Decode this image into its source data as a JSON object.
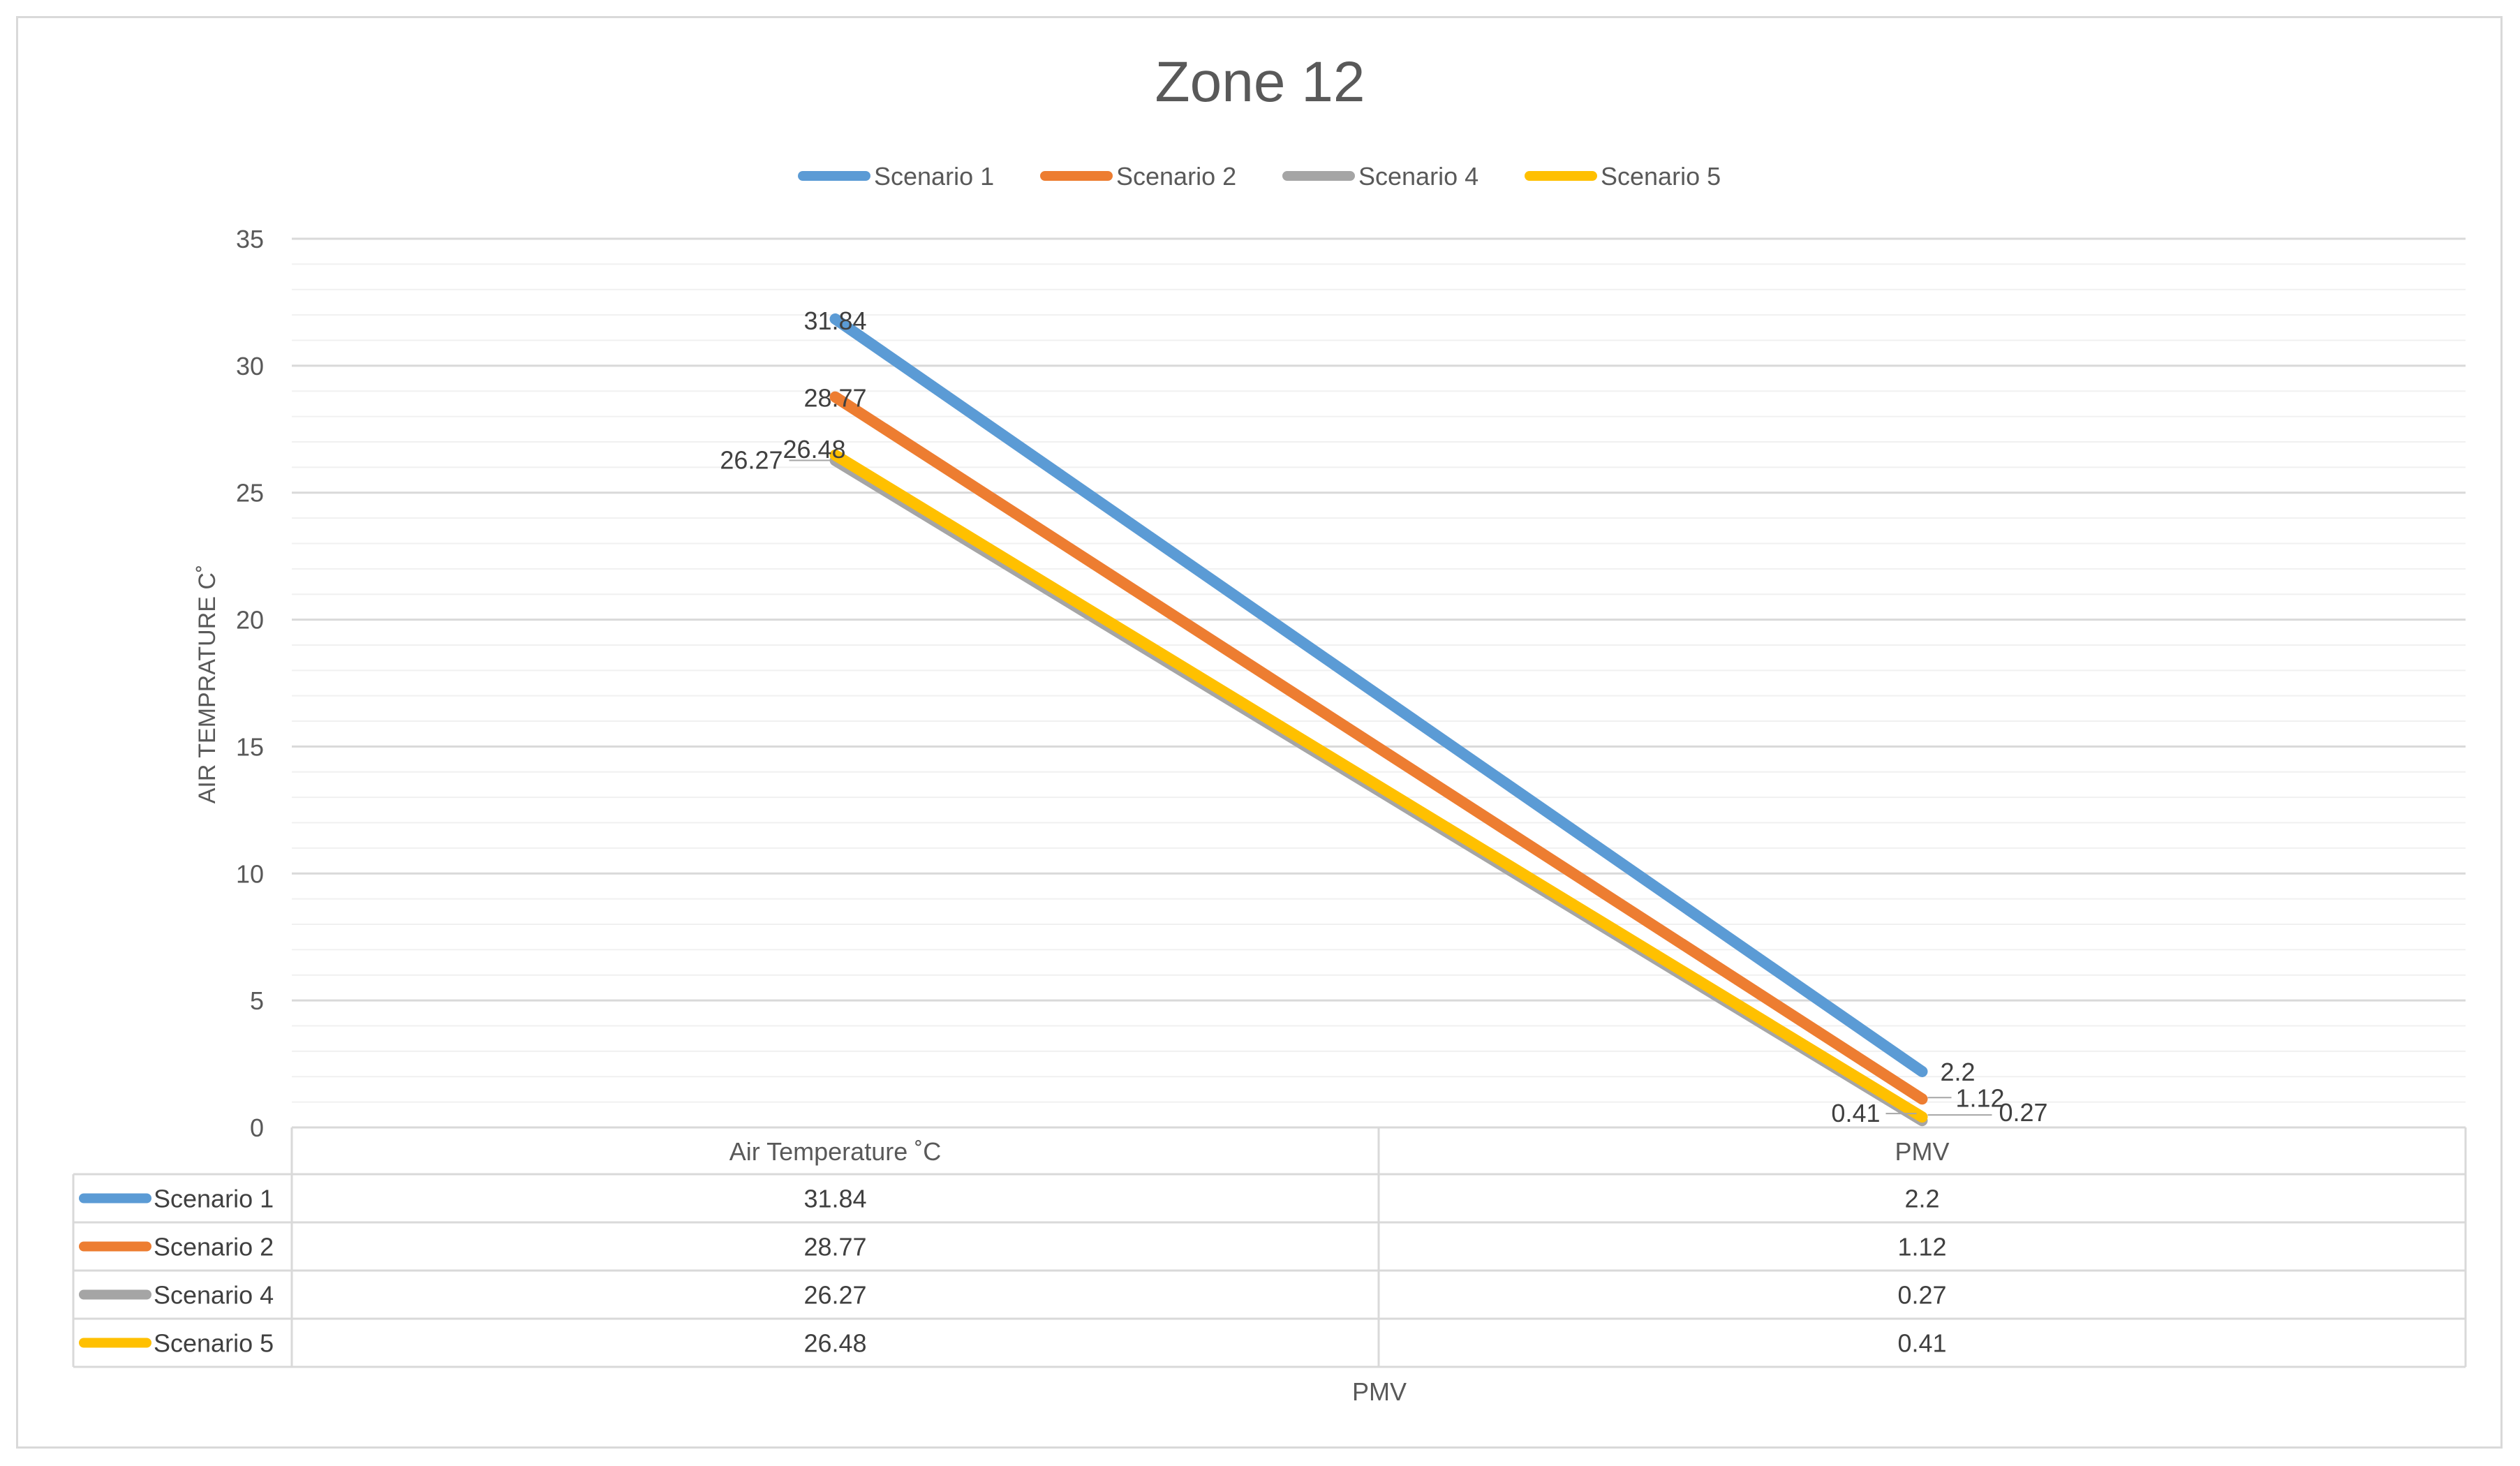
{
  "chart_data": {
    "type": "line",
    "title": "Zone 12",
    "xlabel": "PMV",
    "ylabel": "AIR TEMPRATURE C˚",
    "categories": [
      "Air Temperature ˚C",
      "PMV"
    ],
    "ylim": [
      0,
      35
    ],
    "y_major_step": 5,
    "y_minor_step": 1,
    "grid": true,
    "legend": "top",
    "data_table": true,
    "series": [
      {
        "name": "Scenario 1",
        "values": [
          31.84,
          2.2
        ],
        "labels": [
          "31.84",
          "2.2"
        ],
        "color": "#5b9bd5"
      },
      {
        "name": "Scenario 2",
        "values": [
          28.77,
          1.12
        ],
        "labels": [
          "28.77",
          "1.12"
        ],
        "color": "#ed7d31"
      },
      {
        "name": "Scenario 4",
        "values": [
          26.27,
          0.27
        ],
        "labels": [
          "26.27",
          "0.27"
        ],
        "color": "#a5a5a5"
      },
      {
        "name": "Scenario 5",
        "values": [
          26.48,
          0.41
        ],
        "labels": [
          "26.48",
          "0.41"
        ],
        "color": "#ffc000"
      }
    ]
  }
}
